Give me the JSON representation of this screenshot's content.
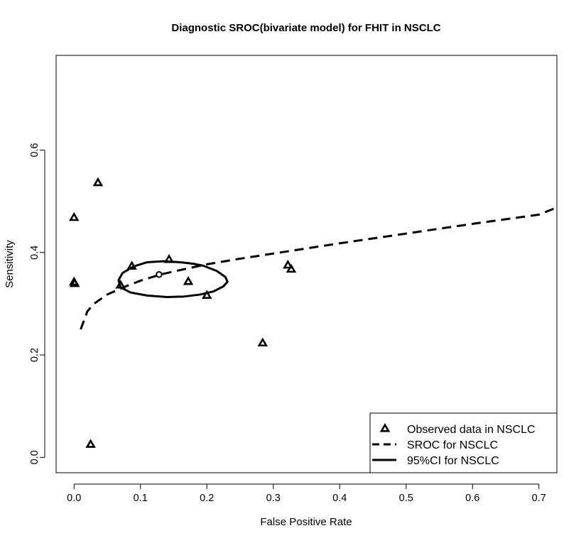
{
  "chart_data": {
    "type": "scatter",
    "title": "Diagnostic SROC(bivariate model) for FHIT in NSCLC",
    "xlabel": "False Positive Rate",
    "ylabel": "Sensitivity",
    "xlim": [
      -0.027,
      0.727
    ],
    "ylim": [
      -0.03,
      0.785
    ],
    "x_ticks": [
      0.0,
      0.1,
      0.2,
      0.3,
      0.4,
      0.5,
      0.6,
      0.7
    ],
    "x_tick_labels": [
      "0.0",
      "0.1",
      "0.2",
      "0.3",
      "0.4",
      "0.5",
      "0.6",
      "0.7"
    ],
    "y_ticks": [
      0.0,
      0.2,
      0.4,
      0.6
    ],
    "y_tick_labels": [
      "0.0",
      "0.2",
      "0.4",
      "0.6"
    ],
    "grid": false,
    "legend_position": "bottom-right",
    "series": [
      {
        "name": "Observed data in NSCLC",
        "type": "scatter",
        "marker": "triangle",
        "points": [
          {
            "x": 0.0,
            "y": 0.468
          },
          {
            "x": 0.0,
            "y": 0.342
          },
          {
            "x": 0.001,
            "y": 0.339
          },
          {
            "x": 0.025,
            "y": 0.025
          },
          {
            "x": 0.036,
            "y": 0.536
          },
          {
            "x": 0.07,
            "y": 0.336
          },
          {
            "x": 0.087,
            "y": 0.373
          },
          {
            "x": 0.143,
            "y": 0.386
          },
          {
            "x": 0.172,
            "y": 0.343
          },
          {
            "x": 0.2,
            "y": 0.316
          },
          {
            "x": 0.284,
            "y": 0.223
          },
          {
            "x": 0.322,
            "y": 0.375
          },
          {
            "x": 0.327,
            "y": 0.367
          }
        ]
      },
      {
        "name": "SROC for NSCLC",
        "type": "line",
        "style": "dashed",
        "points": [
          {
            "x": 0.01,
            "y": 0.25
          },
          {
            "x": 0.02,
            "y": 0.285
          },
          {
            "x": 0.03,
            "y": 0.3
          },
          {
            "x": 0.05,
            "y": 0.318
          },
          {
            "x": 0.08,
            "y": 0.335
          },
          {
            "x": 0.1,
            "y": 0.345
          },
          {
            "x": 0.13,
            "y": 0.357
          },
          {
            "x": 0.15,
            "y": 0.363
          },
          {
            "x": 0.2,
            "y": 0.377
          },
          {
            "x": 0.25,
            "y": 0.388
          },
          {
            "x": 0.3,
            "y": 0.398
          },
          {
            "x": 0.4,
            "y": 0.418
          },
          {
            "x": 0.5,
            "y": 0.437
          },
          {
            "x": 0.6,
            "y": 0.456
          },
          {
            "x": 0.7,
            "y": 0.474
          },
          {
            "x": 0.727,
            "y": 0.488
          }
        ]
      },
      {
        "name": "95%CI for NSCLC",
        "type": "line",
        "style": "solid",
        "points": [
          {
            "x": 0.195,
            "y": 0.374
          },
          {
            "x": 0.215,
            "y": 0.364
          },
          {
            "x": 0.228,
            "y": 0.352
          },
          {
            "x": 0.231,
            "y": 0.343
          },
          {
            "x": 0.225,
            "y": 0.334
          },
          {
            "x": 0.21,
            "y": 0.324
          },
          {
            "x": 0.19,
            "y": 0.318
          },
          {
            "x": 0.165,
            "y": 0.314
          },
          {
            "x": 0.14,
            "y": 0.313
          },
          {
            "x": 0.11,
            "y": 0.316
          },
          {
            "x": 0.085,
            "y": 0.322
          },
          {
            "x": 0.07,
            "y": 0.332
          },
          {
            "x": 0.067,
            "y": 0.346
          },
          {
            "x": 0.073,
            "y": 0.36
          },
          {
            "x": 0.09,
            "y": 0.373
          },
          {
            "x": 0.11,
            "y": 0.381
          },
          {
            "x": 0.135,
            "y": 0.383
          },
          {
            "x": 0.16,
            "y": 0.381
          },
          {
            "x": 0.18,
            "y": 0.378
          },
          {
            "x": 0.195,
            "y": 0.374
          }
        ]
      }
    ],
    "summary_point": {
      "x": 0.128,
      "y": 0.357,
      "marker": "circle"
    }
  }
}
